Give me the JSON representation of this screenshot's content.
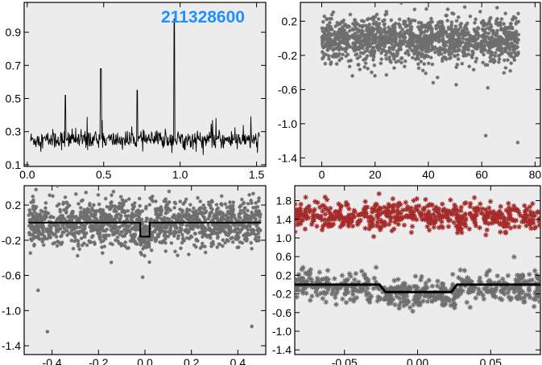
{
  "id_label": "211328600",
  "colors": {
    "panel_bg": "#ececec",
    "frame": "#000000",
    "points": "#6e6e6e",
    "points_red": "#a52a2a",
    "line": "#000000",
    "id_label": "#1e90ff"
  },
  "chart_data": [
    {
      "name": "periodogram",
      "type": "line",
      "xlim": [
        -0.02,
        1.56
      ],
      "ylim": [
        0.09,
        1.08
      ],
      "xticks": [
        0.0,
        0.5,
        1.0,
        1.5
      ],
      "xtick_labels": [
        "0.0",
        "0.5",
        "1.0",
        "1.5"
      ],
      "yticks": [
        0.1,
        0.3,
        0.5,
        0.7,
        0.9
      ],
      "ytick_labels": [
        "0.1",
        "0.3",
        "0.5",
        "0.7",
        "0.9"
      ],
      "baseline": 0.25,
      "noise_amplitude": 0.05,
      "x_range": [
        0.02,
        1.52
      ],
      "peaks": [
        {
          "x": 0.481,
          "y": 0.68
        },
        {
          "x": 0.962,
          "y": 0.98
        },
        {
          "x": 0.25,
          "y": 0.52
        },
        {
          "x": 0.72,
          "y": 0.55
        }
      ]
    },
    {
      "name": "light-curve-vs-time",
      "type": "scatter",
      "xlim": [
        -8,
        82
      ],
      "ylim": [
        -1.5,
        0.42
      ],
      "xticks": [
        0,
        20,
        40,
        60,
        80
      ],
      "xtick_labels": [
        "0",
        "20",
        "40",
        "60",
        "80"
      ],
      "yticks": [
        0.2,
        -0.2,
        -0.6,
        -1.0,
        -1.4
      ],
      "ytick_labels": [
        "0.2",
        "-0.2",
        "-0.6",
        "-1.0",
        "-1.4"
      ],
      "x_range": [
        0,
        74
      ],
      "y_center": -0.02,
      "y_spread": 0.13,
      "n_points": 1400,
      "outliers": [
        {
          "x": 62.3,
          "y": -0.58
        },
        {
          "x": 73.5,
          "y": -1.22
        },
        {
          "x": 61.5,
          "y": -1.14
        },
        {
          "x": 11.5,
          "y": -0.44
        },
        {
          "x": 41.8,
          "y": -0.52
        }
      ]
    },
    {
      "name": "phase-folded",
      "type": "scatter",
      "xlim": [
        -0.52,
        0.52
      ],
      "ylim": [
        -1.5,
        0.42
      ],
      "xticks": [
        -0.4,
        -0.2,
        0.0,
        0.2,
        0.4
      ],
      "xtick_labels": [
        "-0.4",
        "-0.2",
        "0.0",
        "0.2",
        "0.4"
      ],
      "yticks": [
        0.2,
        -0.2,
        -0.6,
        -1.0,
        -1.4
      ],
      "ytick_labels": [
        "0.2",
        "-0.2",
        "-0.6",
        "-1.0",
        "-1.4"
      ],
      "x_range": [
        -0.5,
        0.5
      ],
      "y_center": -0.01,
      "y_spread": 0.13,
      "n_points": 1400,
      "model": {
        "baseline": 0.0,
        "depth": -0.16,
        "transit_start": -0.02,
        "transit_end": 0.02
      },
      "outliers": [
        {
          "x": -0.46,
          "y": -0.77
        },
        {
          "x": -0.42,
          "y": -1.24
        },
        {
          "x": 0.46,
          "y": -1.18
        },
        {
          "x": -0.01,
          "y": -0.62
        }
      ]
    },
    {
      "name": "transit-zoom",
      "type": "scatter",
      "xlim": [
        -0.084,
        0.084
      ],
      "ylim": [
        -1.5,
        2.12
      ],
      "xticks": [
        -0.05,
        0.0,
        0.05
      ],
      "xtick_labels": [
        "-0.05",
        "0.00",
        "0.05"
      ],
      "yticks": [
        1.8,
        1.4,
        1.0,
        0.6,
        0.2,
        -0.2,
        -0.6,
        -1.0,
        -1.4
      ],
      "ytick_labels": [
        "1.8",
        "1.4",
        "1.0",
        "0.6",
        "0.2",
        "-0.2",
        "-0.6",
        "-1.0",
        "-1.4"
      ],
      "x_range": [
        -0.084,
        0.084
      ],
      "series": [
        {
          "color": "#a52a2a",
          "y_center": 1.47,
          "y_spread": 0.15,
          "n_points": 560
        },
        {
          "color": "#6e6e6e",
          "y_center": -0.05,
          "y_spread": 0.15,
          "n_points": 560
        }
      ],
      "model": {
        "baseline": 0.0,
        "depth": -0.16,
        "transit_start": -0.026,
        "transit_end": 0.027,
        "ingress": 0.004
      }
    }
  ]
}
